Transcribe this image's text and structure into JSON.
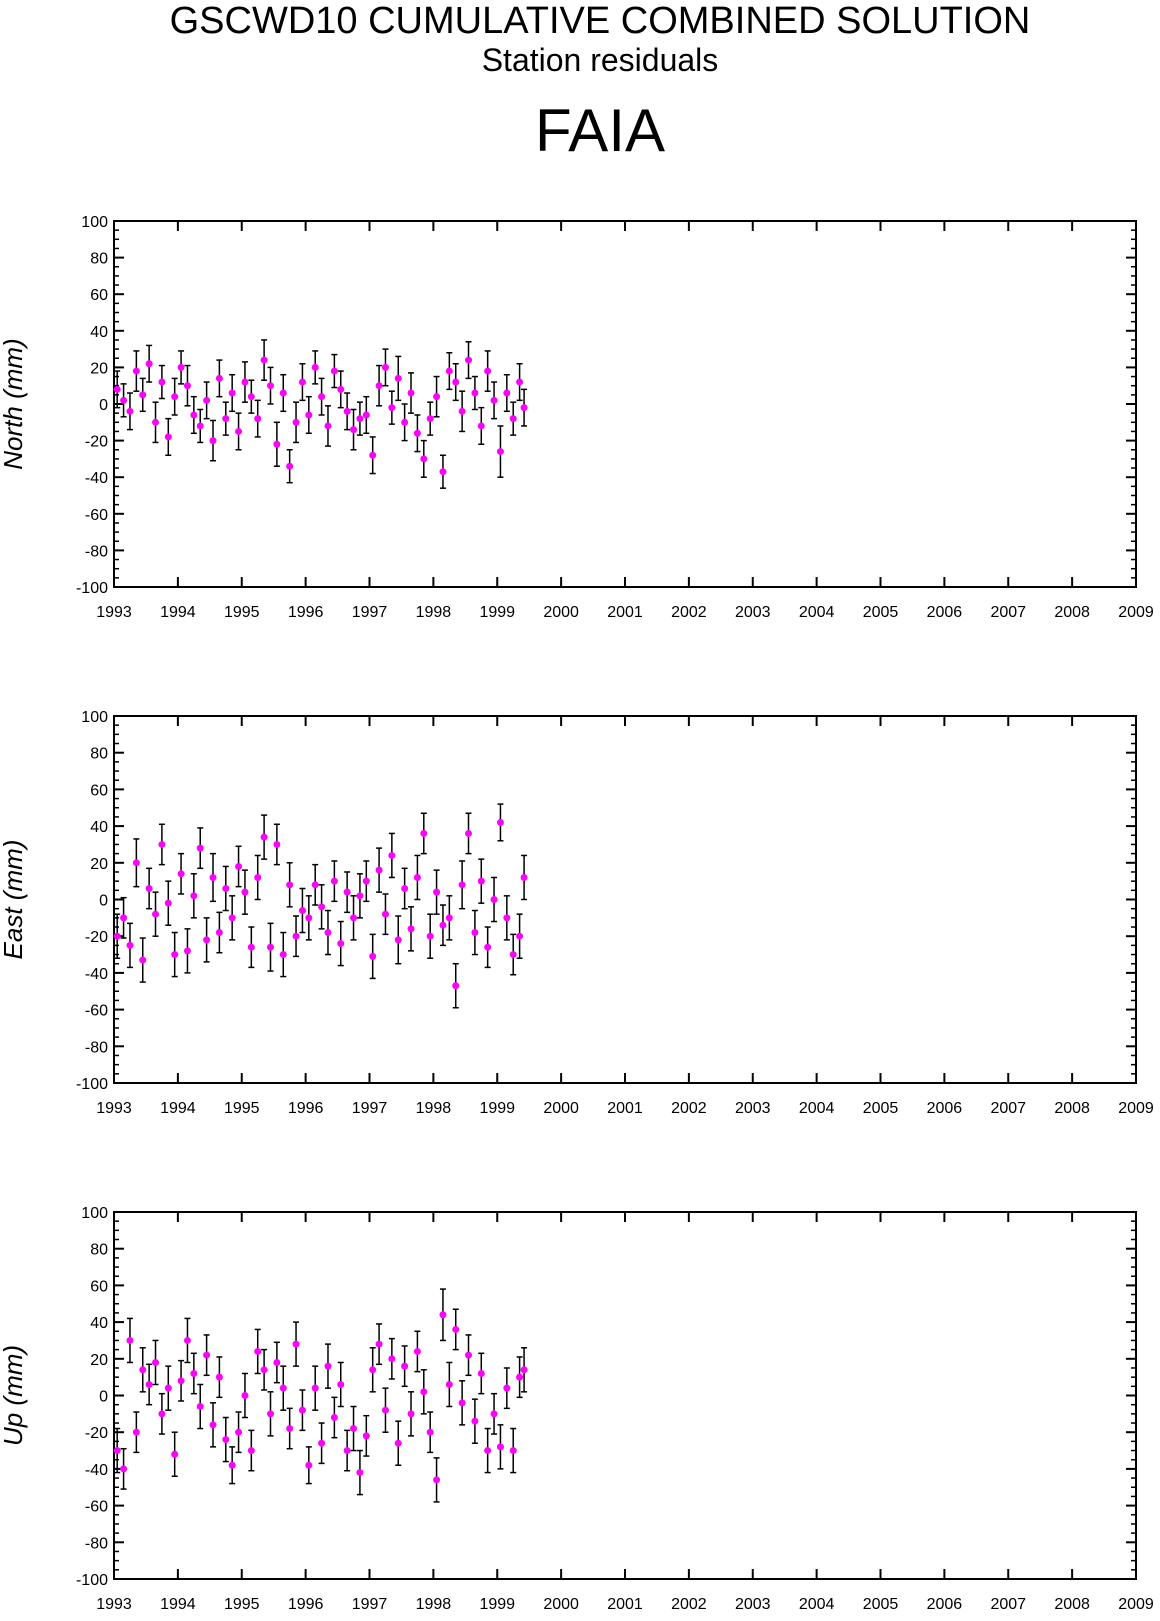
{
  "title": "GSCWD10 CUMULATIVE COMBINED SOLUTION",
  "subtitle": "Station residuals",
  "station": "FAIA",
  "colors": {
    "point": "#ff00ff",
    "errorbar": "#000000",
    "axes": "#000000"
  },
  "chart_data": [
    {
      "type": "scatter",
      "ylabel": "North (mm)",
      "xlim": [
        1993,
        2009
      ],
      "ylim": [
        -100,
        100
      ],
      "x_ticks": [
        "1993",
        "1994",
        "1995",
        "1996",
        "1997",
        "1998",
        "1999",
        "2000",
        "2001",
        "2002",
        "2003",
        "2004",
        "2005",
        "2006",
        "2007",
        "2008",
        "2009"
      ],
      "y_ticks": [
        "100",
        "80",
        "60",
        "40",
        "20",
        "0",
        "-20",
        "-40",
        "-60",
        "-80",
        "-100"
      ],
      "error_bars": true,
      "x": [
        1993.05,
        1993.15,
        1993.25,
        1993.35,
        1993.45,
        1993.55,
        1993.65,
        1993.75,
        1993.85,
        1993.95,
        1994.05,
        1994.15,
        1994.25,
        1994.35,
        1994.45,
        1994.55,
        1994.65,
        1994.75,
        1994.85,
        1994.95,
        1995.05,
        1995.15,
        1995.25,
        1995.35,
        1995.45,
        1995.55,
        1995.65,
        1995.75,
        1995.85,
        1995.95,
        1996.05,
        1996.15,
        1996.25,
        1996.35,
        1996.45,
        1996.55,
        1996.65,
        1996.75,
        1996.85,
        1996.95,
        1997.05,
        1997.15,
        1997.25,
        1997.35,
        1997.45,
        1997.55,
        1997.65,
        1997.75,
        1997.85,
        1997.95,
        1998.05,
        1998.15,
        1998.25,
        1998.35,
        1998.45,
        1998.55,
        1998.65,
        1998.75,
        1998.85,
        1998.95,
        1999.05,
        1999.15,
        1999.25,
        1999.35,
        1999.42
      ],
      "y": [
        8,
        2,
        -4,
        18,
        5,
        22,
        -10,
        12,
        -18,
        4,
        20,
        10,
        -6,
        -12,
        2,
        -20,
        14,
        -8,
        6,
        -15,
        12,
        4,
        -8,
        24,
        10,
        -22,
        6,
        -34,
        -10,
        12,
        -6,
        20,
        4,
        -12,
        18,
        8,
        -4,
        -14,
        -8,
        -6,
        -28,
        10,
        20,
        -2,
        14,
        -10,
        6,
        -16,
        -30,
        -8,
        4,
        -37,
        18,
        12,
        -4,
        24,
        6,
        -12,
        18,
        2,
        -26,
        6,
        -8,
        12,
        -2
      ],
      "err": [
        10,
        9,
        10,
        11,
        9,
        10,
        11,
        9,
        10,
        10,
        9,
        11,
        10,
        9,
        10,
        11,
        10,
        9,
        10,
        10,
        11,
        9,
        10,
        11,
        10,
        12,
        10,
        9,
        11,
        10,
        10,
        9,
        10,
        11,
        9,
        10,
        10,
        11,
        9,
        10,
        10,
        11,
        10,
        9,
        12,
        10,
        11,
        10,
        10,
        9,
        11,
        9,
        10,
        10,
        11,
        10,
        9,
        10,
        11,
        10,
        14,
        10,
        9,
        10,
        10
      ]
    },
    {
      "type": "scatter",
      "ylabel": "East (mm)",
      "xlim": [
        1993,
        2009
      ],
      "ylim": [
        -100,
        100
      ],
      "x_ticks": [
        "1993",
        "1994",
        "1995",
        "1996",
        "1997",
        "1998",
        "1999",
        "2000",
        "2001",
        "2002",
        "2003",
        "2004",
        "2005",
        "2006",
        "2007",
        "2008",
        "2009"
      ],
      "y_ticks": [
        "100",
        "80",
        "60",
        "40",
        "20",
        "0",
        "-20",
        "-40",
        "-60",
        "-80",
        "-100"
      ],
      "error_bars": true,
      "x": [
        1993.05,
        1993.15,
        1993.25,
        1993.35,
        1993.45,
        1993.55,
        1993.65,
        1993.75,
        1993.85,
        1993.95,
        1994.05,
        1994.15,
        1994.25,
        1994.35,
        1994.45,
        1994.55,
        1994.65,
        1994.75,
        1994.85,
        1994.95,
        1995.05,
        1995.15,
        1995.25,
        1995.35,
        1995.45,
        1995.55,
        1995.65,
        1995.75,
        1995.85,
        1995.95,
        1996.05,
        1996.15,
        1996.25,
        1996.35,
        1996.45,
        1996.55,
        1996.65,
        1996.75,
        1996.85,
        1996.95,
        1997.05,
        1997.15,
        1997.25,
        1997.35,
        1997.45,
        1997.55,
        1997.65,
        1997.75,
        1997.85,
        1997.95,
        1998.05,
        1998.15,
        1998.25,
        1998.35,
        1998.45,
        1998.55,
        1998.65,
        1998.75,
        1998.85,
        1998.95,
        1999.05,
        1999.15,
        1999.25,
        1999.35,
        1999.42
      ],
      "y": [
        -20,
        -10,
        -25,
        20,
        -33,
        6,
        -8,
        30,
        -2,
        -30,
        14,
        -28,
        2,
        28,
        -22,
        12,
        -18,
        6,
        -10,
        18,
        4,
        -26,
        12,
        34,
        -26,
        30,
        -30,
        8,
        -20,
        -6,
        -10,
        8,
        -4,
        -18,
        10,
        -24,
        4,
        -10,
        2,
        10,
        -31,
        16,
        -8,
        24,
        -22,
        6,
        -16,
        12,
        36,
        -20,
        4,
        -14,
        -10,
        -47,
        8,
        36,
        -18,
        10,
        -26,
        0,
        42,
        -10,
        -30,
        -20,
        12
      ],
      "err": [
        12,
        11,
        12,
        13,
        12,
        11,
        12,
        11,
        12,
        12,
        11,
        12,
        12,
        11,
        12,
        13,
        11,
        12,
        12,
        11,
        12,
        11,
        12,
        12,
        13,
        11,
        12,
        12,
        11,
        12,
        12,
        11,
        12,
        12,
        11,
        12,
        11,
        12,
        12,
        11,
        12,
        12,
        11,
        12,
        13,
        11,
        12,
        12,
        11,
        12,
        12,
        11,
        12,
        12,
        13,
        11,
        12,
        12,
        11,
        12,
        10,
        12,
        11,
        12,
        12
      ]
    },
    {
      "type": "scatter",
      "ylabel": "Up (mm)",
      "xlim": [
        1993,
        2009
      ],
      "ylim": [
        -100,
        100
      ],
      "x_ticks": [
        "1993",
        "1994",
        "1995",
        "1996",
        "1997",
        "1998",
        "1999",
        "2000",
        "2001",
        "2002",
        "2003",
        "2004",
        "2005",
        "2006",
        "2007",
        "2008",
        "2009"
      ],
      "y_ticks": [
        "100",
        "80",
        "60",
        "40",
        "20",
        "0",
        "-20",
        "-40",
        "-60",
        "-80",
        "-100"
      ],
      "error_bars": true,
      "x": [
        1993.05,
        1993.15,
        1993.25,
        1993.35,
        1993.45,
        1993.55,
        1993.65,
        1993.75,
        1993.85,
        1993.95,
        1994.05,
        1994.15,
        1994.25,
        1994.35,
        1994.45,
        1994.55,
        1994.65,
        1994.75,
        1994.85,
        1994.95,
        1995.05,
        1995.15,
        1995.25,
        1995.35,
        1995.45,
        1995.55,
        1995.65,
        1995.75,
        1995.85,
        1995.95,
        1996.05,
        1996.15,
        1996.25,
        1996.35,
        1996.45,
        1996.55,
        1996.65,
        1996.75,
        1996.85,
        1996.95,
        1997.05,
        1997.15,
        1997.25,
        1997.35,
        1997.45,
        1997.55,
        1997.65,
        1997.75,
        1997.85,
        1997.95,
        1998.05,
        1998.15,
        1998.25,
        1998.35,
        1998.45,
        1998.55,
        1998.65,
        1998.75,
        1998.85,
        1998.95,
        1999.05,
        1999.15,
        1999.25,
        1999.35,
        1999.42
      ],
      "y": [
        -30,
        -40,
        30,
        -20,
        14,
        6,
        18,
        -10,
        4,
        -32,
        8,
        30,
        12,
        -6,
        22,
        -16,
        10,
        -24,
        -38,
        -20,
        0,
        -30,
        24,
        14,
        -10,
        18,
        4,
        -18,
        28,
        -8,
        -38,
        4,
        -26,
        16,
        -12,
        6,
        -30,
        -18,
        -42,
        -22,
        14,
        28,
        -8,
        20,
        -26,
        16,
        -10,
        24,
        2,
        -20,
        -46,
        44,
        6,
        36,
        -4,
        22,
        -14,
        12,
        -30,
        -10,
        -28,
        4,
        -30,
        10,
        14
      ],
      "err": [
        12,
        11,
        12,
        11,
        12,
        11,
        12,
        11,
        12,
        12,
        11,
        12,
        11,
        12,
        11,
        12,
        11,
        12,
        10,
        11,
        12,
        11,
        12,
        11,
        12,
        11,
        12,
        11,
        12,
        11,
        10,
        12,
        11,
        12,
        11,
        12,
        11,
        12,
        12,
        11,
        12,
        11,
        12,
        11,
        12,
        11,
        12,
        11,
        12,
        11,
        12,
        14,
        12,
        11,
        12,
        11,
        12,
        11,
        12,
        11,
        12,
        11,
        12,
        11,
        12
      ]
    }
  ]
}
